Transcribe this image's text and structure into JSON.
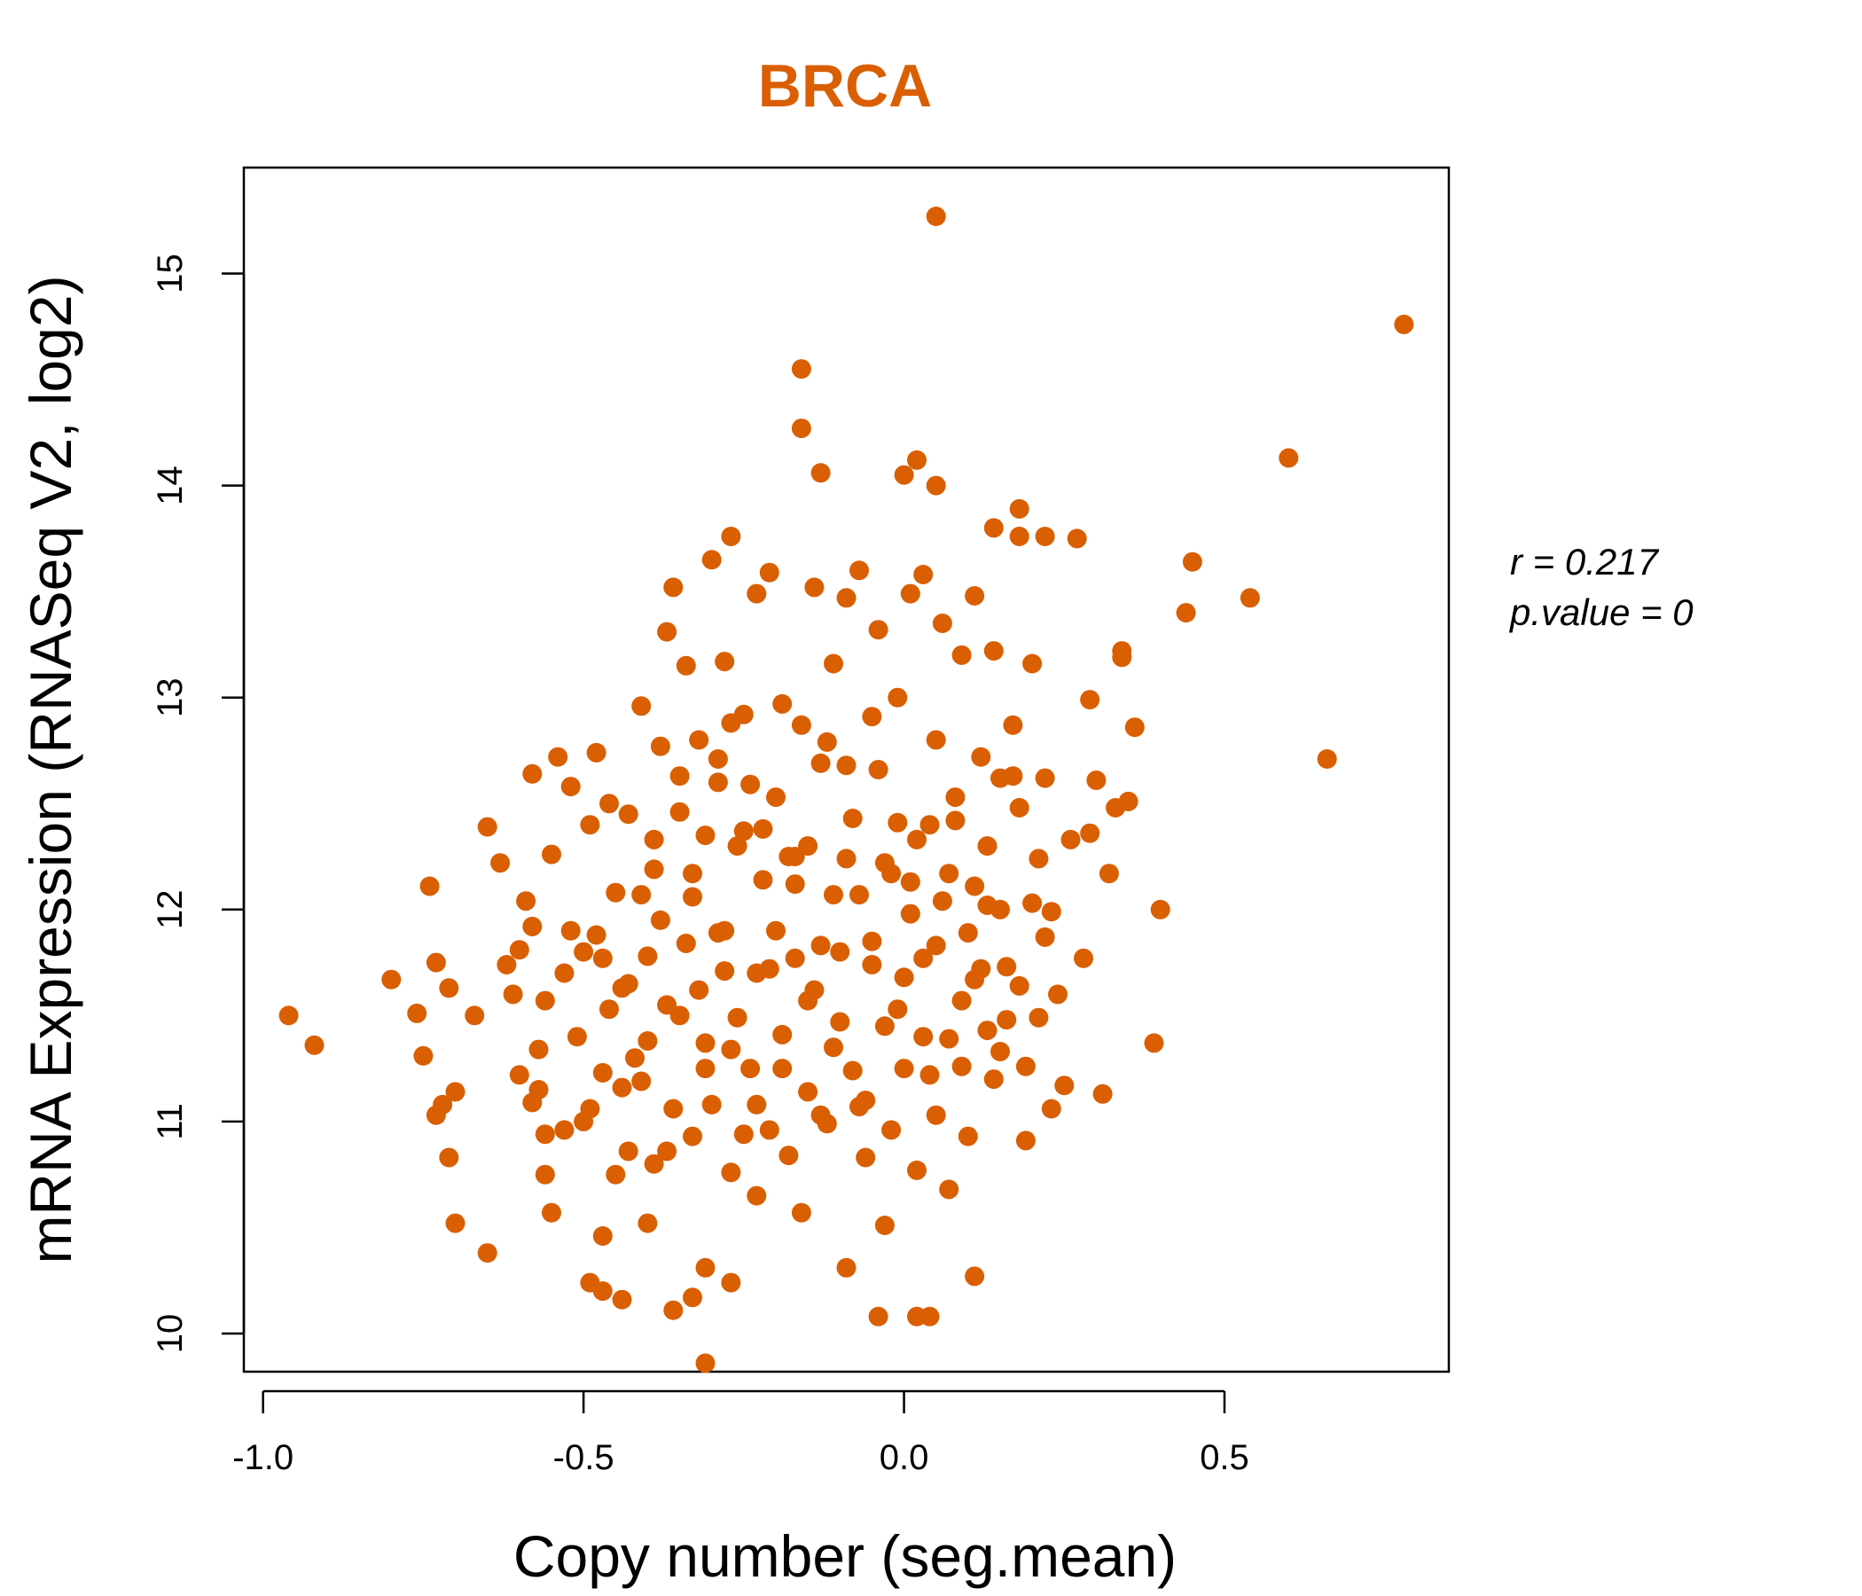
{
  "chart_data": {
    "type": "scatter",
    "title": "BRCA",
    "xlabel": "Copy number (seg.mean)",
    "ylabel": "mRNA Expression (RNASeq V2, log2)",
    "xlim": [
      -1.03,
      0.85
    ],
    "ylim": [
      9.82,
      15.5
    ],
    "x_ticks": [
      -1.0,
      -0.5,
      0.0,
      0.5
    ],
    "x_tick_labels": [
      "-1.0",
      "-0.5",
      "0.0",
      "0.5"
    ],
    "y_ticks": [
      10,
      11,
      12,
      13,
      14,
      15
    ],
    "y_tick_labels": [
      "10",
      "11",
      "12",
      "13",
      "14",
      "15"
    ],
    "point_color": "#d95f02",
    "grid": false,
    "legend": "none",
    "annotations": {
      "r": "r = 0.217",
      "p": "p.value = 0"
    },
    "points": [
      [
        0.05,
        15.27
      ],
      [
        0.78,
        14.76
      ],
      [
        -0.16,
        14.55
      ],
      [
        -0.16,
        14.27
      ],
      [
        0.6,
        14.13
      ],
      [
        -0.13,
        14.06
      ],
      [
        0.02,
        14.12
      ],
      [
        0.0,
        14.05
      ],
      [
        0.05,
        14.0
      ],
      [
        0.18,
        13.89
      ],
      [
        0.14,
        13.8
      ],
      [
        0.18,
        13.76
      ],
      [
        0.22,
        13.76
      ],
      [
        0.27,
        13.75
      ],
      [
        -0.27,
        13.76
      ],
      [
        0.45,
        13.64
      ],
      [
        0.54,
        13.47
      ],
      [
        0.44,
        13.4
      ],
      [
        0.34,
        13.22
      ],
      [
        0.34,
        13.19
      ],
      [
        0.29,
        12.99
      ],
      [
        0.66,
        12.71
      ],
      [
        0.4,
        12.0
      ],
      [
        0.39,
        11.37
      ],
      [
        0.31,
        11.13
      ],
      [
        0.25,
        11.17
      ],
      [
        -0.96,
        11.5
      ],
      [
        -0.92,
        11.36
      ],
      [
        -0.8,
        11.67
      ],
      [
        -0.76,
        11.51
      ],
      [
        -0.75,
        11.31
      ],
      [
        -0.74,
        12.11
      ],
      [
        -0.73,
        11.75
      ],
      [
        -0.73,
        11.03
      ],
      [
        -0.72,
        11.08
      ],
      [
        -0.71,
        11.63
      ],
      [
        -0.71,
        10.83
      ],
      [
        -0.7,
        11.14
      ],
      [
        -0.7,
        10.52
      ],
      [
        -0.67,
        11.5
      ],
      [
        -0.65,
        12.39
      ],
      [
        -0.65,
        10.38
      ],
      [
        -0.31,
        9.86
      ],
      [
        -0.04,
        10.08
      ],
      [
        0.02,
        10.08
      ],
      [
        0.04,
        10.08
      ],
      [
        -0.36,
        10.11
      ],
      [
        -0.33,
        10.17
      ],
      [
        -0.47,
        10.2
      ],
      [
        -0.44,
        10.16
      ],
      [
        -0.27,
        10.24
      ],
      [
        -0.49,
        10.24
      ],
      [
        0.11,
        10.27
      ],
      [
        -0.31,
        10.31
      ],
      [
        -0.09,
        10.31
      ],
      [
        -0.63,
        12.22
      ],
      [
        -0.62,
        11.74
      ],
      [
        -0.61,
        11.6
      ],
      [
        -0.6,
        11.81
      ],
      [
        -0.59,
        12.04
      ],
      [
        -0.58,
        11.92
      ],
      [
        -0.58,
        12.64
      ],
      [
        -0.57,
        11.34
      ],
      [
        -0.57,
        11.15
      ],
      [
        -0.56,
        10.94
      ],
      [
        -0.56,
        10.75
      ],
      [
        -0.55,
        12.26
      ],
      [
        -0.55,
        10.57
      ],
      [
        -0.53,
        11.7
      ],
      [
        -0.52,
        12.58
      ],
      [
        -0.51,
        11.4
      ],
      [
        -0.5,
        11.0
      ],
      [
        -0.49,
        12.4
      ],
      [
        -0.48,
        12.74
      ],
      [
        -0.48,
        11.88
      ],
      [
        -0.47,
        11.23
      ],
      [
        -0.47,
        10.46
      ],
      [
        -0.46,
        12.5
      ],
      [
        -0.45,
        12.08
      ],
      [
        -0.44,
        11.63
      ],
      [
        -0.43,
        12.45
      ],
      [
        -0.42,
        11.3
      ],
      [
        -0.41,
        12.96
      ],
      [
        -0.4,
        10.52
      ],
      [
        -0.4,
        11.78
      ],
      [
        -0.39,
        12.33
      ],
      [
        -0.38,
        12.77
      ],
      [
        -0.37,
        11.55
      ],
      [
        -0.37,
        13.31
      ],
      [
        -0.36,
        13.52
      ],
      [
        -0.35,
        12.63
      ],
      [
        -0.34,
        11.84
      ],
      [
        -0.34,
        13.15
      ],
      [
        -0.33,
        12.17
      ],
      [
        -0.32,
        12.8
      ],
      [
        -0.31,
        11.37
      ],
      [
        -0.3,
        13.65
      ],
      [
        -0.29,
        12.6
      ],
      [
        -0.28,
        11.71
      ],
      [
        -0.28,
        13.17
      ],
      [
        -0.27,
        10.76
      ],
      [
        -0.26,
        12.3
      ],
      [
        -0.25,
        12.92
      ],
      [
        -0.24,
        11.25
      ],
      [
        -0.23,
        10.65
      ],
      [
        -0.23,
        13.49
      ],
      [
        -0.22,
        12.38
      ],
      [
        -0.21,
        13.59
      ],
      [
        -0.2,
        11.9
      ],
      [
        -0.19,
        12.97
      ],
      [
        -0.18,
        10.84
      ],
      [
        -0.17,
        12.12
      ],
      [
        -0.16,
        12.87
      ],
      [
        -0.15,
        11.57
      ],
      [
        -0.14,
        13.52
      ],
      [
        -0.13,
        11.03
      ],
      [
        -0.12,
        12.79
      ],
      [
        -0.11,
        13.16
      ],
      [
        -0.1,
        11.47
      ],
      [
        -0.09,
        13.47
      ],
      [
        -0.08,
        12.43
      ],
      [
        -0.07,
        13.6
      ],
      [
        -0.06,
        11.1
      ],
      [
        -0.05,
        12.91
      ],
      [
        -0.04,
        13.32
      ],
      [
        -0.03,
        10.51
      ],
      [
        -0.02,
        12.17
      ],
      [
        -0.01,
        13.0
      ],
      [
        0.0,
        11.68
      ],
      [
        0.01,
        13.49
      ],
      [
        0.02,
        12.33
      ],
      [
        0.03,
        13.58
      ],
      [
        0.04,
        11.22
      ],
      [
        0.05,
        12.8
      ],
      [
        0.06,
        13.35
      ],
      [
        0.07,
        10.68
      ],
      [
        0.08,
        12.53
      ],
      [
        0.09,
        13.2
      ],
      [
        0.1,
        11.89
      ],
      [
        0.11,
        13.48
      ],
      [
        0.12,
        12.72
      ],
      [
        0.13,
        11.43
      ],
      [
        0.14,
        13.22
      ],
      [
        0.15,
        12.62
      ],
      [
        0.16,
        11.73
      ],
      [
        0.17,
        12.87
      ],
      [
        0.18,
        12.48
      ],
      [
        0.19,
        11.26
      ],
      [
        0.2,
        13.16
      ],
      [
        0.21,
        12.24
      ],
      [
        0.22,
        12.62
      ],
      [
        0.23,
        11.99
      ],
      [
        0.24,
        11.6
      ],
      [
        0.26,
        12.33
      ],
      [
        0.28,
        11.77
      ],
      [
        0.29,
        12.36
      ],
      [
        0.3,
        12.61
      ],
      [
        0.32,
        12.17
      ],
      [
        0.33,
        12.48
      ],
      [
        0.35,
        12.51
      ],
      [
        0.36,
        12.86
      ],
      [
        -0.54,
        12.72
      ],
      [
        -0.6,
        11.22
      ],
      [
        -0.53,
        10.96
      ],
      [
        -0.5,
        11.8
      ],
      [
        -0.46,
        11.53
      ],
      [
        -0.44,
        11.16
      ],
      [
        -0.43,
        10.86
      ],
      [
        -0.41,
        12.07
      ],
      [
        -0.4,
        11.38
      ],
      [
        -0.39,
        10.8
      ],
      [
        -0.38,
        11.95
      ],
      [
        -0.36,
        11.06
      ],
      [
        -0.35,
        12.46
      ],
      [
        -0.33,
        10.93
      ],
      [
        -0.32,
        11.62
      ],
      [
        -0.31,
        12.35
      ],
      [
        -0.3,
        11.08
      ],
      [
        -0.29,
        12.71
      ],
      [
        -0.28,
        11.9
      ],
      [
        -0.27,
        12.88
      ],
      [
        -0.26,
        11.49
      ],
      [
        -0.25,
        10.94
      ],
      [
        -0.24,
        12.59
      ],
      [
        -0.23,
        11.7
      ],
      [
        -0.22,
        12.14
      ],
      [
        -0.21,
        10.96
      ],
      [
        -0.2,
        12.53
      ],
      [
        -0.19,
        11.25
      ],
      [
        -0.18,
        12.25
      ],
      [
        -0.17,
        11.77
      ],
      [
        -0.16,
        10.57
      ],
      [
        -0.15,
        12.3
      ],
      [
        -0.14,
        11.62
      ],
      [
        -0.13,
        12.69
      ],
      [
        -0.12,
        10.99
      ],
      [
        -0.11,
        12.07
      ],
      [
        -0.1,
        11.8
      ],
      [
        -0.09,
        12.68
      ],
      [
        -0.08,
        11.24
      ],
      [
        -0.07,
        12.07
      ],
      [
        -0.06,
        10.83
      ],
      [
        -0.05,
        11.85
      ],
      [
        -0.04,
        12.66
      ],
      [
        -0.03,
        11.45
      ],
      [
        -0.02,
        10.96
      ],
      [
        -0.01,
        12.41
      ],
      [
        0.0,
        11.25
      ],
      [
        0.01,
        12.13
      ],
      [
        0.02,
        10.77
      ],
      [
        0.03,
        11.77
      ],
      [
        0.04,
        12.4
      ],
      [
        0.05,
        11.03
      ],
      [
        0.06,
        12.04
      ],
      [
        0.07,
        11.39
      ],
      [
        0.08,
        12.42
      ],
      [
        0.09,
        11.57
      ],
      [
        0.1,
        10.93
      ],
      [
        0.11,
        12.11
      ],
      [
        0.12,
        11.72
      ],
      [
        0.13,
        12.3
      ],
      [
        0.14,
        11.2
      ],
      [
        0.15,
        12.0
      ],
      [
        0.16,
        11.48
      ],
      [
        0.17,
        12.63
      ],
      [
        0.18,
        11.64
      ],
      [
        0.19,
        10.91
      ],
      [
        0.2,
        12.03
      ],
      [
        0.21,
        11.49
      ],
      [
        0.22,
        11.87
      ],
      [
        0.23,
        11.06
      ],
      [
        -0.58,
        11.09
      ],
      [
        -0.56,
        11.57
      ],
      [
        -0.52,
        11.9
      ],
      [
        -0.49,
        11.06
      ],
      [
        -0.47,
        11.77
      ],
      [
        -0.45,
        10.75
      ],
      [
        -0.43,
        11.65
      ],
      [
        -0.41,
        11.19
      ],
      [
        -0.39,
        12.19
      ],
      [
        -0.37,
        10.86
      ],
      [
        -0.35,
        11.5
      ],
      [
        -0.33,
        12.06
      ],
      [
        -0.31,
        11.25
      ],
      [
        -0.29,
        11.89
      ],
      [
        -0.27,
        11.34
      ],
      [
        -0.25,
        12.37
      ],
      [
        -0.23,
        11.08
      ],
      [
        -0.21,
        11.72
      ],
      [
        -0.19,
        11.41
      ],
      [
        -0.17,
        12.25
      ],
      [
        -0.15,
        11.14
      ],
      [
        -0.13,
        11.83
      ],
      [
        -0.11,
        11.35
      ],
      [
        -0.09,
        12.24
      ],
      [
        -0.07,
        11.07
      ],
      [
        -0.05,
        11.74
      ],
      [
        -0.03,
        12.22
      ],
      [
        -0.01,
        11.53
      ],
      [
        0.01,
        11.98
      ],
      [
        0.03,
        11.4
      ],
      [
        0.05,
        11.83
      ],
      [
        0.07,
        12.17
      ],
      [
        0.09,
        11.26
      ],
      [
        0.11,
        11.67
      ],
      [
        0.13,
        12.02
      ],
      [
        0.15,
        11.33
      ]
    ]
  }
}
